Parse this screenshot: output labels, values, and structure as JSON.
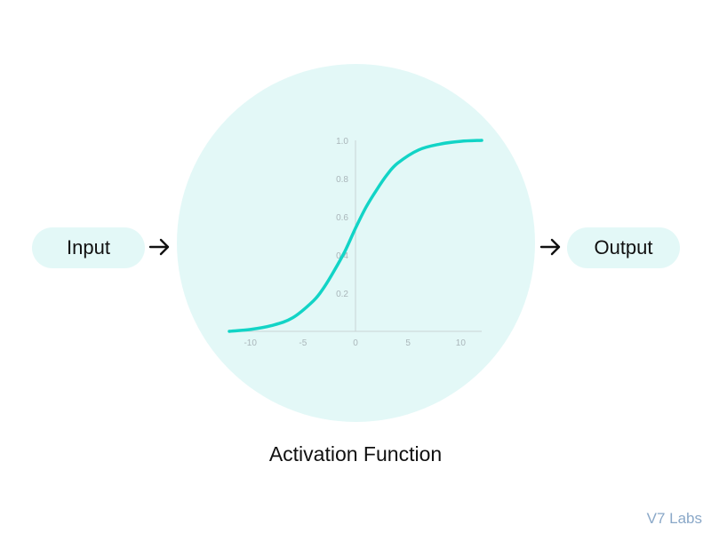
{
  "input": {
    "label": "Input",
    "arrow_icon": "right-arrow-icon"
  },
  "output": {
    "label": "Output",
    "arrow_icon": "right-arrow-icon"
  },
  "caption": "Activation Function",
  "brand": "V7 Labs",
  "colors": {
    "fill": "#e3f8f7",
    "curve": "#12d4c6",
    "axis": "#c9d3d6",
    "tick_text": "#aab6ba",
    "text": "#111111",
    "brand": "#8aa8c8"
  },
  "chart_data": {
    "type": "line",
    "title": "",
    "xlabel": "",
    "ylabel": "",
    "xlim": [
      -12,
      12
    ],
    "ylim": [
      0,
      1.0
    ],
    "x_ticks": [
      -10,
      -5,
      0,
      5,
      10
    ],
    "y_ticks": [
      0.2,
      0.4,
      0.6,
      0.8,
      1.0
    ],
    "grid": false,
    "series": [
      {
        "x": [
          -12,
          -10,
          -8,
          -6,
          -4,
          -3,
          -2,
          -1,
          0,
          1,
          2,
          3,
          4,
          6,
          8,
          10,
          12
        ],
        "y": [
          0.0,
          0.01,
          0.03,
          0.07,
          0.16,
          0.23,
          0.32,
          0.42,
          0.54,
          0.65,
          0.74,
          0.82,
          0.88,
          0.95,
          0.98,
          0.995,
          1.0
        ]
      }
    ]
  }
}
